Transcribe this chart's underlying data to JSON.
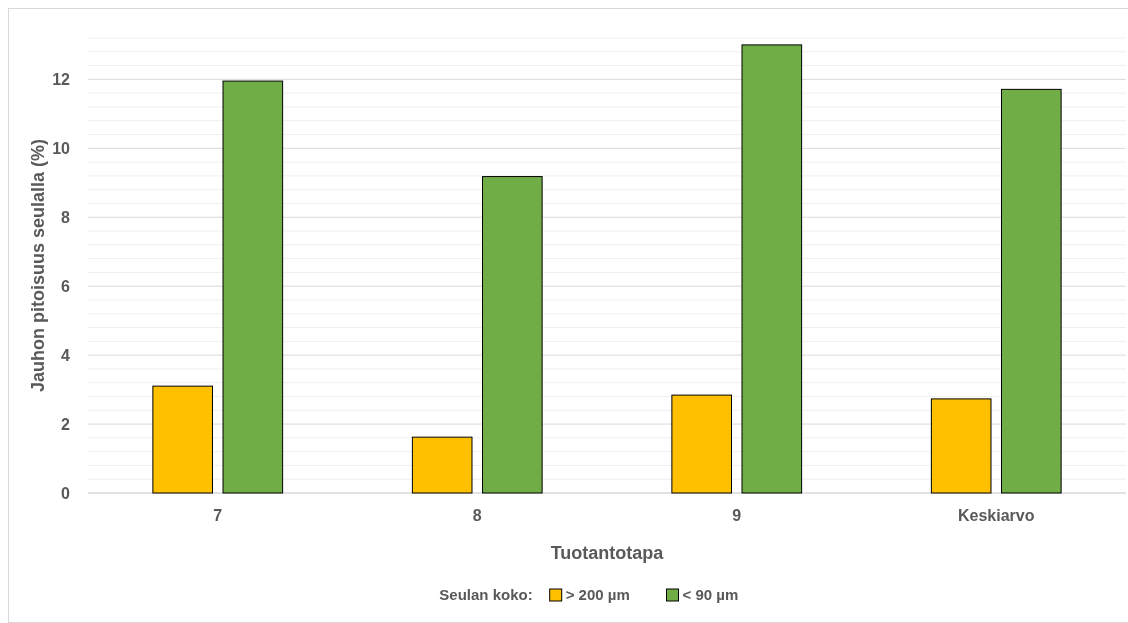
{
  "chart_data": {
    "type": "bar",
    "xlabel": "Tuotantotapa",
    "ylabel": "Jauhon pitoisuus seulalla (%)",
    "legend_title": "Seulan koko:",
    "categories": [
      "7",
      "8",
      "9",
      "Keskiarvo"
    ],
    "series": [
      {
        "name": "> 200 µm",
        "color": "#ffc000",
        "values": [
          3.1,
          1.62,
          2.84,
          2.73
        ]
      },
      {
        "name": "< 90 µm",
        "color": "#70ad47",
        "values": [
          11.95,
          9.18,
          13.0,
          11.71
        ]
      }
    ],
    "ylim": [
      0,
      13.2
    ],
    "yticks": [
      0,
      {
        "value": 0.4,
        "label": null
      },
      {
        "value": 0.8,
        "label": null
      },
      {
        "value": 1.2,
        "label": null
      },
      {
        "value": 1.6,
        "label": null
      },
      2,
      {
        "value": 2.4,
        "label": null
      },
      {
        "value": 2.8,
        "label": null
      },
      {
        "value": 3.2,
        "label": null
      },
      {
        "value": 3.6,
        "label": null
      },
      4,
      {
        "value": 4.4,
        "label": null
      },
      {
        "value": 4.8,
        "label": null
      },
      {
        "value": 5.2,
        "label": null
      },
      {
        "value": 5.6,
        "label": null
      },
      6,
      {
        "value": 6.4,
        "label": null
      },
      {
        "value": 6.8,
        "label": null
      },
      {
        "value": 7.2,
        "label": null
      },
      {
        "value": 7.6,
        "label": null
      },
      8,
      {
        "value": 8.4,
        "label": null
      },
      {
        "value": 8.8,
        "label": null
      },
      {
        "value": 9.2,
        "label": null
      },
      {
        "value": 9.6,
        "label": null
      },
      10,
      {
        "value": 10.4,
        "label": null
      },
      {
        "value": 10.8,
        "label": null
      },
      {
        "value": 11.2,
        "label": null
      },
      {
        "value": 11.6,
        "label": null
      },
      12,
      {
        "value": 12.4,
        "label": null
      },
      {
        "value": 12.8,
        "label": null
      },
      {
        "value": 13.2,
        "label": null
      }
    ],
    "grid": "y",
    "legend": "bottom"
  }
}
